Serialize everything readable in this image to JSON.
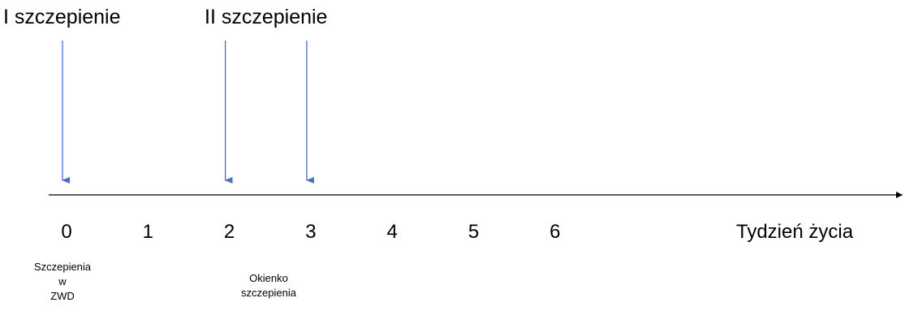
{
  "labels": {
    "first_vaccination": "I szczepienie",
    "second_vaccination": "II szczepienie",
    "axis_title": "Tydzień życia",
    "note_zwd": [
      "Szczepienia",
      "w",
      "ZWD"
    ],
    "note_window": [
      "Okienko",
      "szczepienia"
    ]
  },
  "colors": {
    "arrow": "#4472C4",
    "axis": "#000000"
  },
  "timeline": {
    "ticks": [
      "0",
      "1",
      "2",
      "3",
      "4",
      "5",
      "6"
    ],
    "arrows_at_weeks": [
      0,
      2,
      3
    ]
  }
}
